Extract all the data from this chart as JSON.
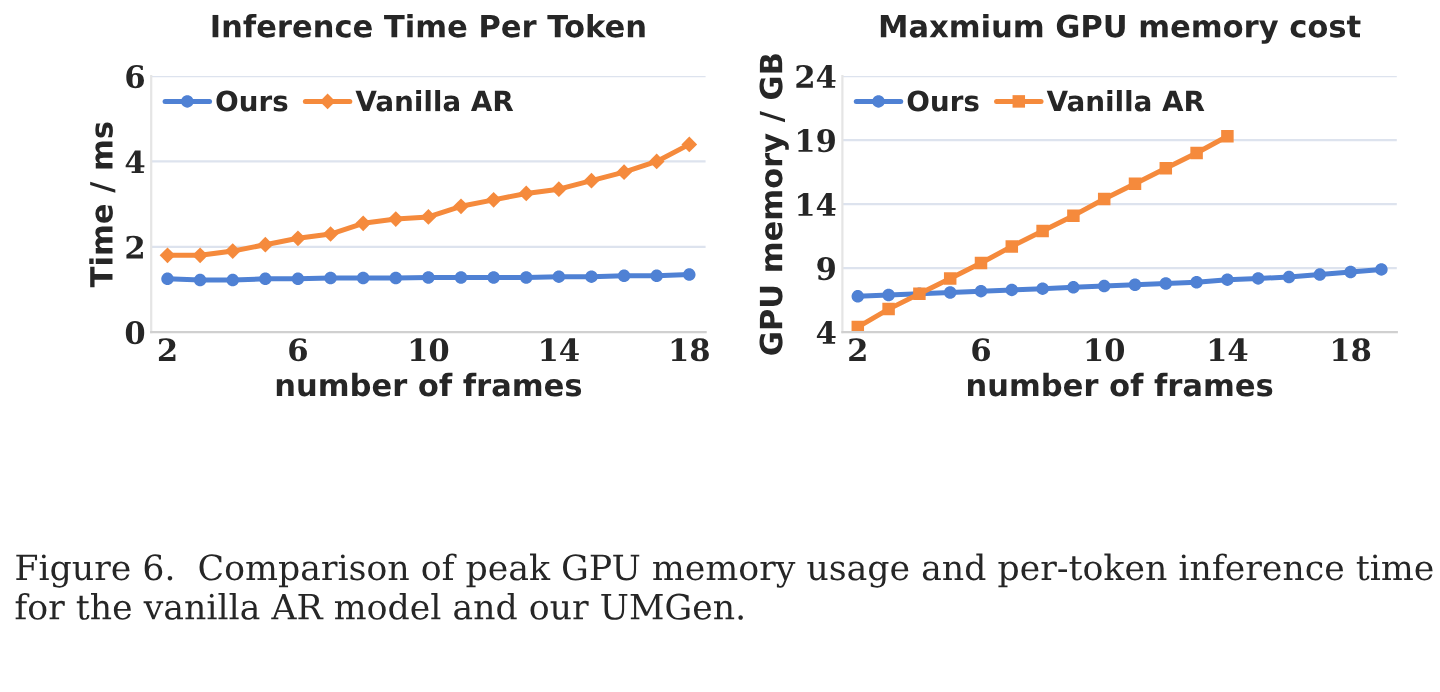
{
  "chart_data": [
    {
      "type": "line",
      "title": "Inference Time Per Token",
      "xlabel": "number of frames",
      "ylabel": "Time / ms",
      "x": [
        2,
        3,
        4,
        5,
        6,
        7,
        8,
        9,
        10,
        11,
        12,
        13,
        14,
        15,
        16,
        17,
        18
      ],
      "series": [
        {
          "name": "Ours",
          "color": "#4f81d4",
          "marker": "circle",
          "values": [
            1.25,
            1.22,
            1.22,
            1.25,
            1.25,
            1.27,
            1.27,
            1.27,
            1.28,
            1.28,
            1.28,
            1.28,
            1.3,
            1.3,
            1.32,
            1.32,
            1.35
          ]
        },
        {
          "name": "Vanilla AR",
          "color": "#f58a3c",
          "marker": "diamond",
          "values": [
            1.8,
            1.8,
            1.9,
            2.05,
            2.2,
            2.3,
            2.55,
            2.65,
            2.7,
            2.95,
            3.1,
            3.25,
            3.35,
            3.55,
            3.75,
            4.0,
            4.4
          ]
        }
      ],
      "xlim": [
        1.5,
        18.5
      ],
      "xticks": [
        2,
        6,
        10,
        14,
        18
      ],
      "ylim": [
        0,
        6
      ],
      "yticks": [
        0,
        2,
        4,
        6
      ],
      "grid": "y",
      "legend": "top left",
      "annotations": [
        "Figure 6.  Comparison of peak GPU memory usage and per-token inference time for the vanilla AR model and our UMGen."
      ]
    },
    {
      "type": "line",
      "title": "Maxmium GPU memory cost",
      "xlabel": "number of frames",
      "ylabel": "GPU memory / GB",
      "series": [
        {
          "name": "Ours",
          "color": "#4f81d4",
          "marker": "circle",
          "x": [
            2,
            3,
            4,
            5,
            6,
            7,
            8,
            9,
            10,
            11,
            12,
            13,
            14,
            15,
            16,
            17,
            18,
            19
          ],
          "values": [
            6.8,
            6.9,
            7.0,
            7.1,
            7.2,
            7.3,
            7.4,
            7.5,
            7.6,
            7.7,
            7.8,
            7.9,
            8.1,
            8.2,
            8.3,
            8.5,
            8.7,
            8.9
          ]
        },
        {
          "name": "Vanilla AR",
          "color": "#f58a3c",
          "marker": "square",
          "x": [
            2,
            3,
            4,
            5,
            6,
            7,
            8,
            9,
            10,
            11,
            12,
            13,
            14
          ],
          "values": [
            4.4,
            5.8,
            7.0,
            8.2,
            9.4,
            10.7,
            11.9,
            13.1,
            14.4,
            15.6,
            16.8,
            18.0,
            19.3
          ]
        }
      ],
      "xlim": [
        1.5,
        19.5
      ],
      "xticks": [
        2,
        6,
        10,
        14,
        18
      ],
      "ylim": [
        4,
        24
      ],
      "yticks": [
        4,
        9,
        14,
        19,
        24
      ],
      "grid": "y",
      "legend": "top left"
    }
  ]
}
